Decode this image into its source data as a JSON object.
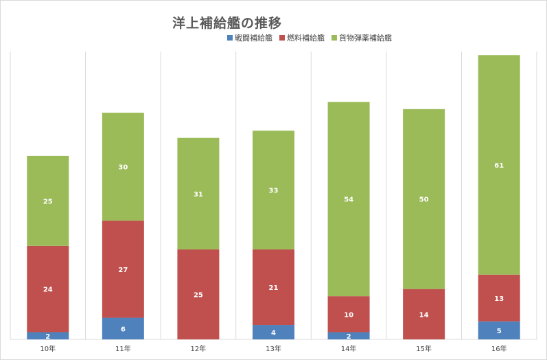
{
  "chart_data": {
    "type": "bar",
    "stacked": true,
    "title": "洋上補給艦の推移",
    "categories": [
      "10年",
      "11年",
      "12年",
      "13年",
      "14年",
      "15年",
      "16年"
    ],
    "series": [
      {
        "name": "戦闘補給艦",
        "color": "#4F81BD",
        "values": [
          2,
          6,
          0,
          4,
          2,
          0,
          5
        ]
      },
      {
        "name": "燃料補給艦",
        "color": "#C0504D",
        "values": [
          24,
          27,
          25,
          21,
          10,
          14,
          13
        ]
      },
      {
        "name": "貨物弾薬補給艦",
        "color": "#9BBB59",
        "values": [
          25,
          30,
          31,
          33,
          54,
          50,
          61
        ]
      }
    ],
    "legend_position": "top",
    "grid": "vertical",
    "ylim": [
      0,
      80
    ],
    "data_labels": true
  }
}
